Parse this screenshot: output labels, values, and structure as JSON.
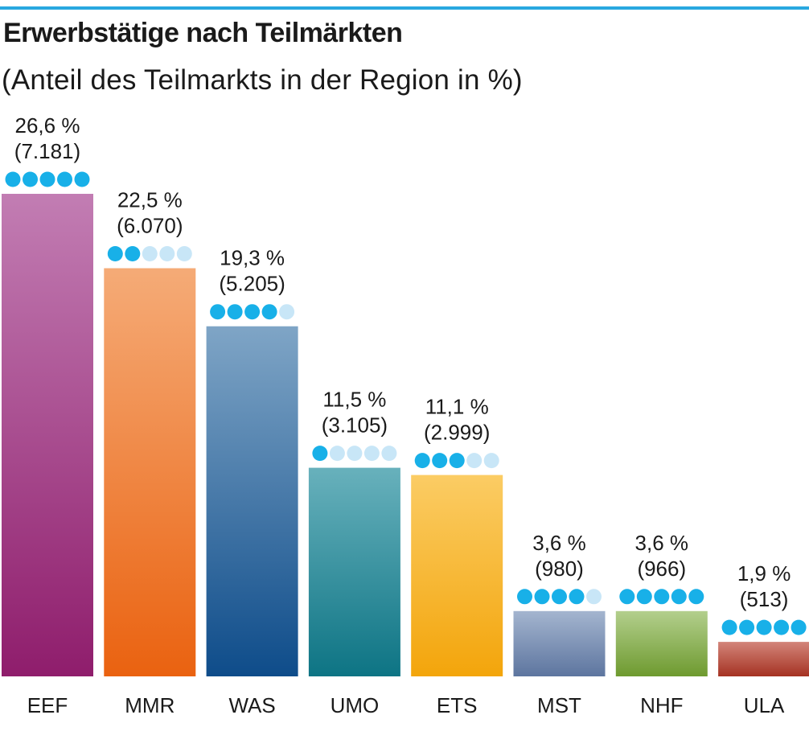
{
  "chart_data": {
    "type": "bar",
    "title": "Erwerbstätige nach Teilmärkten",
    "subtitle": "(Anteil des Teilmarkts in der Region in %)",
    "categories": [
      "EEF",
      "MMR",
      "WAS",
      "UMO",
      "ETS",
      "MST",
      "NHF",
      "ULA"
    ],
    "values": [
      26.6,
      22.5,
      19.3,
      11.5,
      11.1,
      3.6,
      3.6,
      1.9
    ],
    "value_labels": [
      "26,6 %",
      "22,5 %",
      "19,3 %",
      "11,5 %",
      "11,1 %",
      "3,6 %",
      "3,6 %",
      "1,9 %"
    ],
    "count_labels": [
      "(7.181)",
      "(6.070)",
      "(5.205)",
      "(3.105)",
      "(2.999)",
      "(980)",
      "(966)",
      "(513)"
    ],
    "rating_dots": [
      5,
      2,
      4,
      1,
      3,
      4,
      5,
      5
    ],
    "rating_max": 5,
    "ylim": [
      0,
      26.6
    ],
    "grid": false,
    "colors": {
      "accent_rule": "#29a8e0",
      "dot_filled": "#18b0e8",
      "dot_empty": "#c8e6f7",
      "bars": [
        {
          "top": "#c27db3",
          "bottom": "#8f1d6c"
        },
        {
          "top": "#f5ab77",
          "bottom": "#ea6210"
        },
        {
          "top": "#7fa5c6",
          "bottom": "#0e4c8a"
        },
        {
          "top": "#68b1bc",
          "bottom": "#0d7484"
        },
        {
          "top": "#fbcc64",
          "bottom": "#f3a50b"
        },
        {
          "top": "#a4b5cf",
          "bottom": "#5d759f"
        },
        {
          "top": "#b3cf8d",
          "bottom": "#6e9a2f"
        },
        {
          "top": "#d3857a",
          "bottom": "#a53222"
        }
      ]
    }
  }
}
